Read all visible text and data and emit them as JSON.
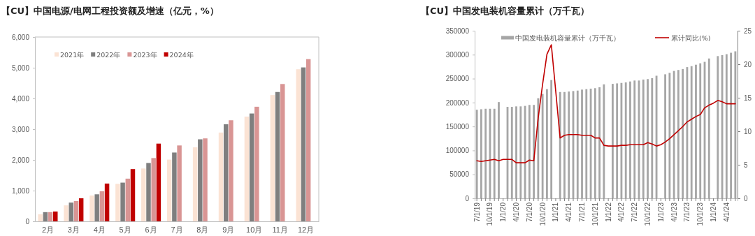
{
  "chart_data": [
    {
      "type": "bar",
      "title": "【CU】中国电源/电网工程投资额及增速（亿元，%）",
      "categories": [
        "2月",
        "3月",
        "4月",
        "5月",
        "6月",
        "7月",
        "8月",
        "9月",
        "10月",
        "11月",
        "12月"
      ],
      "ylim": [
        0,
        6000
      ],
      "yticks": [
        0,
        {
          "value": 1000,
          "label": "1,000"
        },
        {
          "value": 2000,
          "label": "2,000"
        },
        {
          "value": 3000,
          "label": "3,000"
        },
        {
          "value": 4000,
          "label": "4,000"
        },
        {
          "value": 5000,
          "label": "5,000"
        },
        {
          "value": 6000,
          "label": "6,000"
        }
      ],
      "legend": "top left",
      "series": [
        {
          "name": "2021年",
          "color": "#fbe3d4",
          "values": [
            230,
            520,
            840,
            1220,
            1720,
            2010,
            2410,
            2890,
            3410,
            4110,
            4950
          ]
        },
        {
          "name": "2022年",
          "color": "#7f7f7f",
          "values": [
            300,
            610,
            880,
            1260,
            1900,
            2240,
            2670,
            3160,
            3510,
            4210,
            5010
          ]
        },
        {
          "name": "2023年",
          "color": "#d99594",
          "values": [
            300,
            660,
            980,
            1390,
            2060,
            2470,
            2700,
            3290,
            3730,
            4470,
            5280
          ]
        },
        {
          "name": "2024年",
          "color": "#c00000",
          "values": [
            320,
            750,
            1230,
            1700,
            2530,
            null,
            null,
            null,
            null,
            null,
            null
          ]
        }
      ]
    },
    {
      "type": "bar",
      "title": "【CU】中国发电装机容量累计（万千瓦）",
      "categories": [
        "7/1/19",
        null,
        null,
        "10/1/19",
        null,
        null,
        "1/1/20",
        null,
        null,
        "4/1/20",
        null,
        null,
        "7/1/20",
        null,
        null,
        "10/1/20",
        null,
        null,
        "1/1/21",
        null,
        null,
        "4/1/21",
        null,
        null,
        "7/1/21",
        null,
        null,
        "10/1/21",
        null,
        null,
        "1/1/22",
        null,
        null,
        "4/1/22",
        null,
        null,
        "7/1/22",
        null,
        null,
        "10/1/22",
        null,
        null,
        "1/1/23",
        null,
        null,
        "4/1/23",
        null,
        null,
        "7/1/23",
        null,
        null,
        "10/1/23",
        null,
        null,
        "1/1/24",
        null,
        null,
        "4/1/24",
        null,
        null
      ],
      "ylim": [
        0,
        350000
      ],
      "yticks": [
        0,
        50000,
        100000,
        150000,
        200000,
        250000,
        300000,
        350000
      ],
      "y2lim": [
        0,
        25
      ],
      "y2ticks": [
        0,
        5,
        10,
        15,
        20,
        25
      ],
      "legend": "top",
      "series": [
        {
          "name": "中国发电装机容量累计（万千瓦）",
          "type": "bar",
          "color": "#a6a6a6",
          "values": [
            185000,
            186000,
            187000,
            187000,
            187000,
            201000,
            null,
            191000,
            191000,
            192000,
            192000,
            193000,
            195000,
            195000,
            209000,
            218000,
            228000,
            247000,
            null,
            222000,
            222000,
            223000,
            224000,
            225000,
            227000,
            228000,
            229000,
            230000,
            232000,
            238000,
            null,
            239000,
            240000,
            241000,
            242000,
            244000,
            246000,
            246000,
            248000,
            249000,
            251000,
            256000,
            null,
            259000,
            262000,
            266000,
            268000,
            270000,
            274000,
            276000,
            279000,
            282000,
            285000,
            292000,
            null,
            297000,
            299000,
            301000,
            304000,
            307000
          ]
        },
        {
          "name": "累计同比(%)",
          "type": "line",
          "axis": "y2",
          "color": "#c00000",
          "values": [
            5.6,
            5.5,
            5.6,
            5.7,
            5.8,
            5.6,
            5.8,
            5.8,
            5.8,
            5.3,
            5.3,
            5.3,
            5.7,
            5.6,
            12,
            17,
            21.5,
            22.9,
            16,
            9,
            9.4,
            9.5,
            9.5,
            9.5,
            9.4,
            9.4,
            9.4,
            9,
            9,
            7.9,
            7.8,
            7.8,
            7.8,
            7.9,
            7.9,
            8,
            8,
            8,
            8,
            8.3,
            8.1,
            7.8,
            8,
            8.4,
            8.9,
            9.5,
            10.1,
            10.7,
            11.4,
            11.8,
            12.2,
            12.5,
            13.5,
            13.9,
            14.2,
            14.6,
            14.4,
            14.1,
            14.1,
            14.1
          ]
        }
      ]
    }
  ]
}
